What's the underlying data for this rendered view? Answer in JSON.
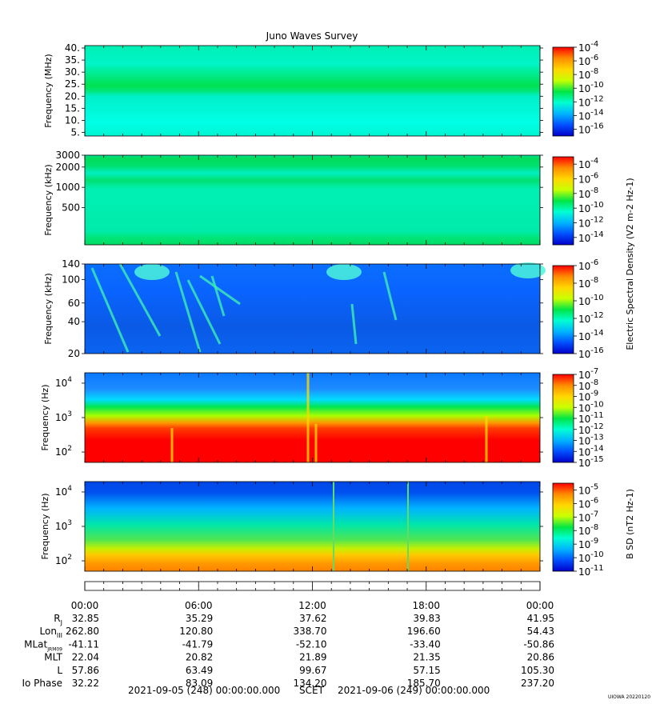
{
  "title": "Juno Waves Survey",
  "footer": {
    "start": "2021-09-05 (248) 00:00:00.000",
    "frame": "SCET",
    "end": "2021-09-06 (249) 00:00:00.000",
    "credit": "UIOWA 20220120"
  },
  "time_ticks": [
    "00:00",
    "06:00",
    "12:00",
    "18:00",
    "00:00"
  ],
  "ephemeris": [
    {
      "label": "R",
      "sub": "J",
      "values": [
        "32.85",
        "35.29",
        "37.62",
        "39.83",
        "41.95"
      ]
    },
    {
      "label": "Lon",
      "sub": "III",
      "values": [
        "262.80",
        "120.80",
        "338.70",
        "196.60",
        "54.43"
      ]
    },
    {
      "label": "MLat",
      "sub": "JRM09",
      "values": [
        "-41.11",
        "-41.79",
        "-52.10",
        "-33.40",
        "-50.86"
      ]
    },
    {
      "label": "MLT",
      "sub": "",
      "values": [
        "22.04",
        "20.82",
        "21.89",
        "21.35",
        "20.86"
      ]
    },
    {
      "label": "L",
      "sub": "",
      "values": [
        "57.86",
        "63.49",
        "99.67",
        "57.15",
        "105.30"
      ]
    },
    {
      "label": "Io Phase",
      "sub": "",
      "values": [
        "32.22",
        "83.09",
        "134.20",
        "185.70",
        "237.20"
      ]
    }
  ],
  "colors": {
    "scale": [
      "#0000c8",
      "#0050ff",
      "#00b4ff",
      "#00ffd2",
      "#00e646",
      "#c8ff00",
      "#ffd700",
      "#ff8c00",
      "#ff0000"
    ]
  },
  "chart_data": [
    {
      "type": "heatmap",
      "ylabel": "Frequency (MHz)",
      "y_scale": "linear",
      "ylim": [
        3.5,
        41
      ],
      "y_ticks": [
        "40.",
        "35.",
        "30.",
        "25.",
        "20.",
        "15.",
        "10.",
        "5."
      ],
      "y_tick_values": [
        40,
        35,
        30,
        25,
        20,
        15,
        10,
        5
      ],
      "colorbar_ticks": [
        "10-4",
        "10-6",
        "10-8",
        "10-10",
        "10-12",
        "10-14",
        "10-16"
      ],
      "colorbar_exponents": [
        -4,
        -6,
        -8,
        -10,
        -12,
        -14,
        -16
      ],
      "colorbar_range": [
        -4,
        -17
      ]
    },
    {
      "type": "heatmap",
      "ylabel": "Frequency (kHz)",
      "y_scale": "log",
      "ylim": [
        140,
        3000
      ],
      "y_ticks": [
        "3000",
        "2000",
        "1000",
        "500"
      ],
      "y_tick_values": [
        3000,
        2000,
        1000,
        500
      ],
      "colorbar_ticks": [
        "10-4",
        "10-6",
        "10-8",
        "10-10",
        "10-12",
        "10-14"
      ],
      "colorbar_exponents": [
        -4,
        -6,
        -8,
        -10,
        -12,
        -14
      ],
      "colorbar_range": [
        -3,
        -15
      ],
      "colorbar_label": "Electric Spectral Density (V2 m-2 Hz-1)"
    },
    {
      "type": "heatmap",
      "ylabel": "Frequency (kHz)",
      "y_scale": "log",
      "ylim": [
        20,
        140
      ],
      "y_ticks": [
        "140",
        "100",
        "60",
        "40",
        "20"
      ],
      "y_tick_values": [
        140,
        100,
        60,
        40,
        20
      ],
      "colorbar_ticks": [
        "10-6",
        "10-8",
        "10-10",
        "10-12",
        "10-14",
        "10-16"
      ],
      "colorbar_exponents": [
        -6,
        -8,
        -10,
        -12,
        -14,
        -16
      ],
      "colorbar_range": [
        -6,
        -16
      ]
    },
    {
      "type": "heatmap",
      "ylabel": "Frequency (Hz)",
      "y_scale": "log",
      "ylim": [
        50,
        20000
      ],
      "y_ticks": [
        "10^4",
        "10^3",
        "10^2"
      ],
      "y_tick_values": [
        10000,
        1000,
        100
      ],
      "colorbar_ticks": [
        "10-7",
        "10-8",
        "10-9",
        "10-10",
        "10-11",
        "10-12",
        "10-13",
        "10-14",
        "10-15"
      ],
      "colorbar_exponents": [
        -7,
        -8,
        -9,
        -10,
        -11,
        -12,
        -13,
        -14,
        -15
      ],
      "colorbar_range": [
        -7,
        -15
      ]
    },
    {
      "type": "heatmap",
      "ylabel": "Frequency (Hz)",
      "y_scale": "log",
      "ylim": [
        50,
        20000
      ],
      "y_ticks": [
        "10^4",
        "10^3",
        "10^2"
      ],
      "y_tick_values": [
        10000,
        1000,
        100
      ],
      "colorbar_ticks": [
        "10-5",
        "10-6",
        "10-7",
        "10-8",
        "10-9",
        "10-10",
        "10-11"
      ],
      "colorbar_exponents": [
        -5,
        -6,
        -7,
        -8,
        -9,
        -10,
        -11
      ],
      "colorbar_range": [
        -4.5,
        -11
      ],
      "colorbar_label": "B SD (nT2 Hz-1)"
    }
  ]
}
